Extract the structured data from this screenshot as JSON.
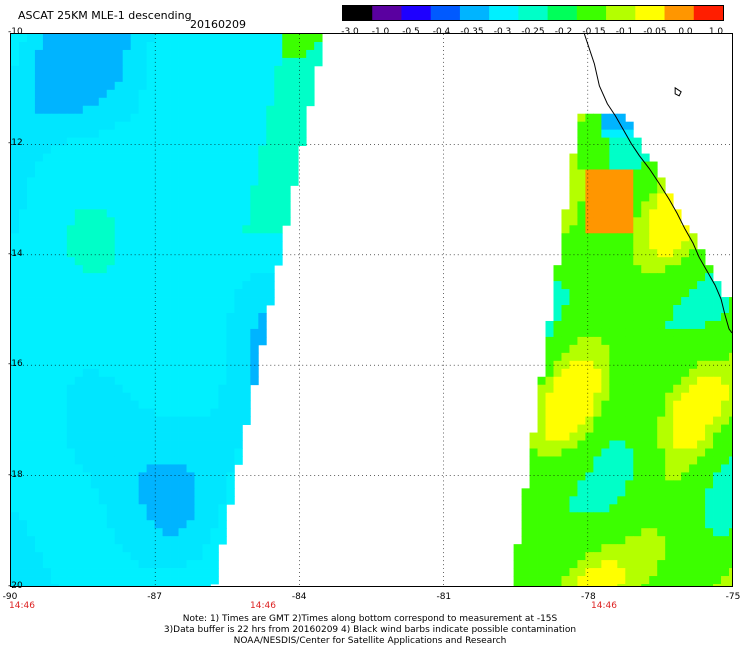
{
  "header": {
    "title": "ASCAT 25KM MLE-1 descending",
    "date": "20160209"
  },
  "colorbar": {
    "ticks": [
      "-3.0",
      "-1.0",
      "-0.5",
      "-0.4",
      "-0.35",
      "-0.3",
      "-0.25",
      "-0.2",
      "-0.15",
      "-0.1",
      "-0.05",
      "0.0",
      "1.0"
    ],
    "colors": [
      "#000000",
      "#5a00a0",
      "#1e00ff",
      "#005aff",
      "#00b4ff",
      "#00f0ff",
      "#00ffc8",
      "#00ff5a",
      "#3cff00",
      "#b4ff00",
      "#ffff00",
      "#ff9600",
      "#ff1e00"
    ]
  },
  "map": {
    "lat_labels": [
      "-10",
      "-12",
      "-14",
      "-16",
      "-18",
      "-20"
    ],
    "lon_labels": [
      "-90",
      "-87",
      "-84",
      "-81",
      "-78",
      "-75"
    ],
    "time_labels": [
      "14:46",
      "14:46",
      "14:46"
    ],
    "lat_range": [
      -20,
      -10
    ],
    "lon_range": [
      -90,
      -75
    ]
  },
  "footer": {
    "line1": "Note: 1) Times are GMT 2)Times along bottom correspond to measurement at -15S",
    "line2": "3)Data buffer is 22 hrs from 20160209 4) Black wind barbs indicate possible contamination",
    "line3": "NOAA/NESDIS/Center for Satellite Applications and Research"
  }
}
